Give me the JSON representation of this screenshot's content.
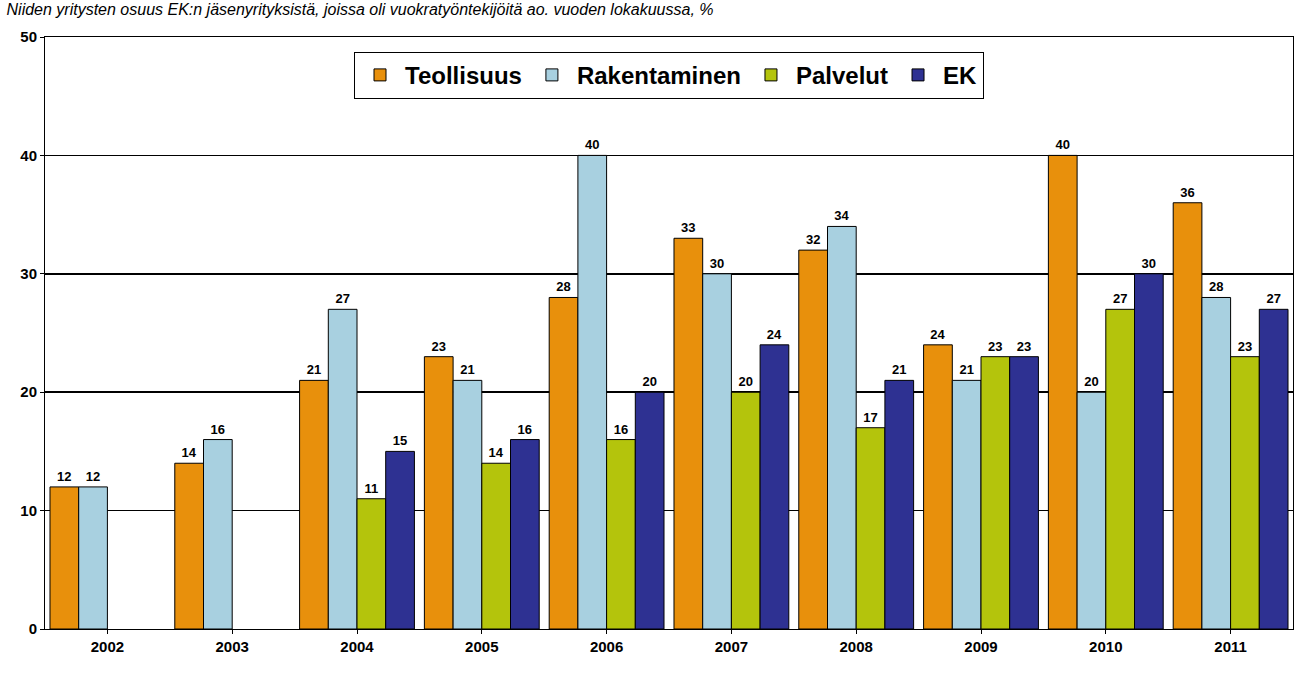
{
  "chart_data": {
    "type": "bar",
    "title": "Niiden yritysten osuus EK:n jäsenyrityksistä, joissa oli vuokratyöntekijöitä ao. vuoden lokakuussa, %",
    "categories": [
      "2002",
      "2003",
      "2004",
      "2005",
      "2006",
      "2007",
      "2008",
      "2009",
      "2010",
      "2011"
    ],
    "series": [
      {
        "name": "Teollisuus",
        "color": "#E8900C",
        "values": [
          12,
          14,
          21,
          23,
          28,
          33,
          32,
          24,
          40,
          36
        ]
      },
      {
        "name": "Rakentaminen",
        "color": "#A8D0E0",
        "values": [
          12,
          16,
          27,
          21,
          40,
          30,
          34,
          21,
          20,
          28
        ]
      },
      {
        "name": "Palvelut",
        "color": "#B4C40C",
        "values": [
          null,
          null,
          11,
          14,
          16,
          20,
          17,
          23,
          27,
          23
        ]
      },
      {
        "name": "EK",
        "color": "#2E3192",
        "values": [
          null,
          null,
          15,
          16,
          20,
          24,
          21,
          23,
          30,
          27
        ]
      }
    ],
    "ylim": [
      0,
      50
    ],
    "yticks": [
      0,
      10,
      20,
      30,
      40,
      50
    ],
    "grid": true,
    "legend": "top",
    "data_labels": true
  }
}
